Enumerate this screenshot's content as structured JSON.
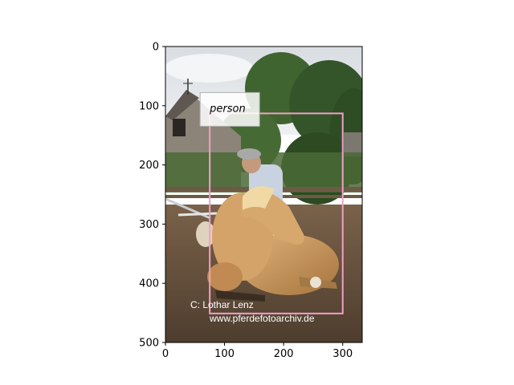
{
  "axes": {
    "x_ticks": [
      0,
      100,
      200,
      300
    ],
    "y_ticks": [
      0,
      100,
      200,
      300,
      400,
      500
    ],
    "xlim": [
      0,
      333
    ],
    "ylim": [
      500,
      0
    ]
  },
  "detection": {
    "label": "person",
    "box": {
      "x0": 75,
      "y0": 113,
      "x1": 300,
      "y1": 451
    },
    "box_color": "#f0a0c8"
  },
  "watermark": {
    "line1": "C:  Lothar Lenz",
    "line2": "www.pferdefotoarchiv.de"
  },
  "colors": {
    "sky": "#e4e7ea",
    "trees": "#3b5a2a",
    "ground": "#6b5540",
    "horse": "#c9965a",
    "house": "#8a8276"
  }
}
